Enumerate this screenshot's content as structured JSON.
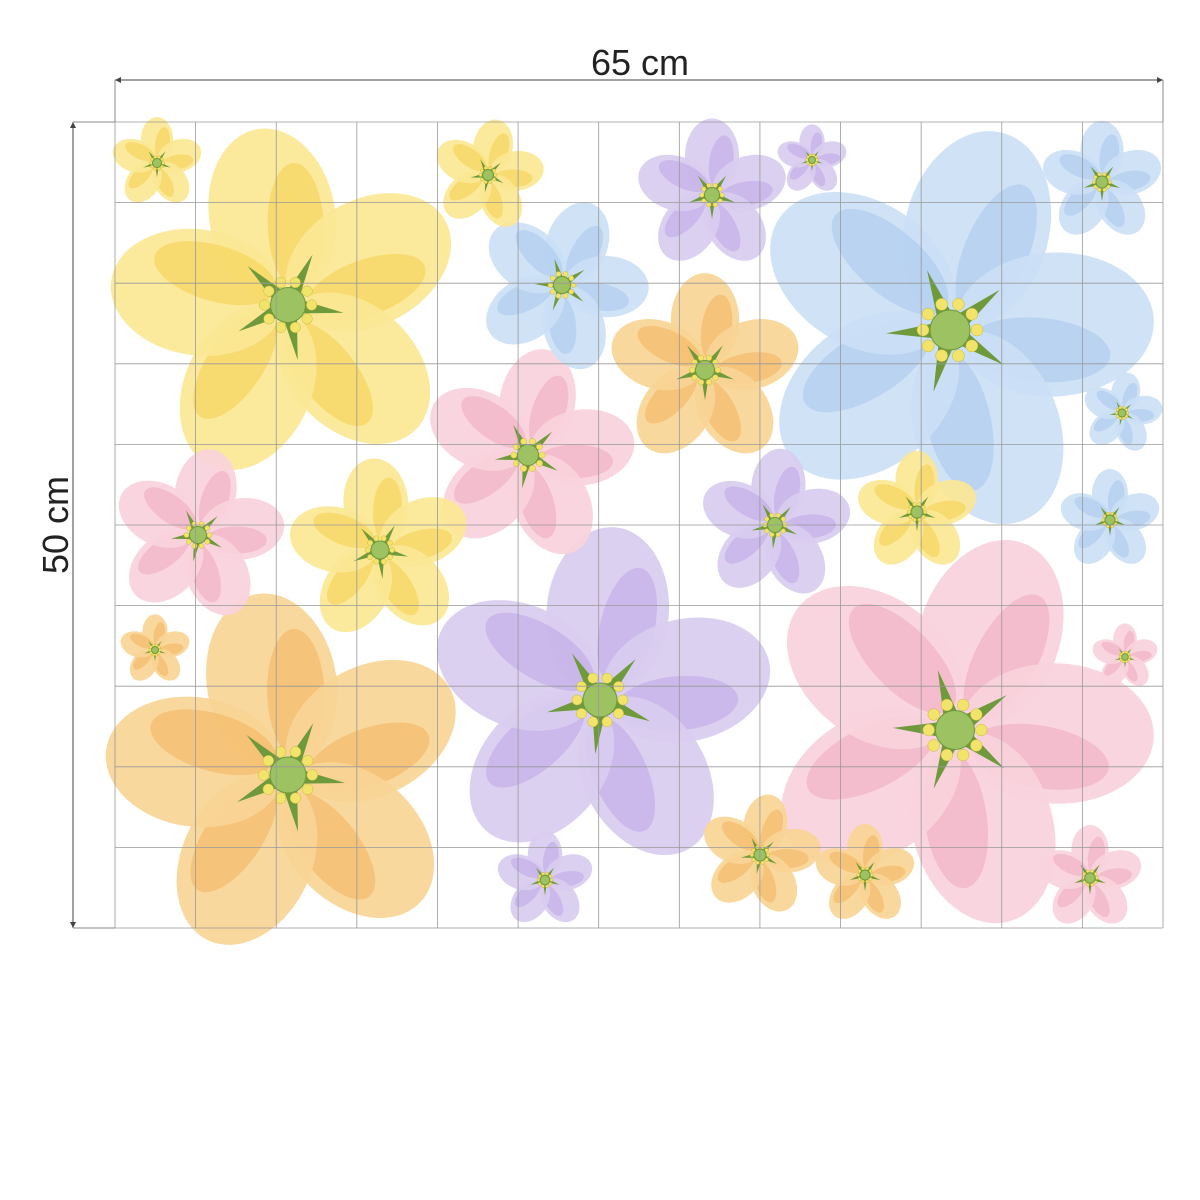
{
  "dimensions": {
    "width_label": "65 cm",
    "height_label": "50 cm"
  }
}
